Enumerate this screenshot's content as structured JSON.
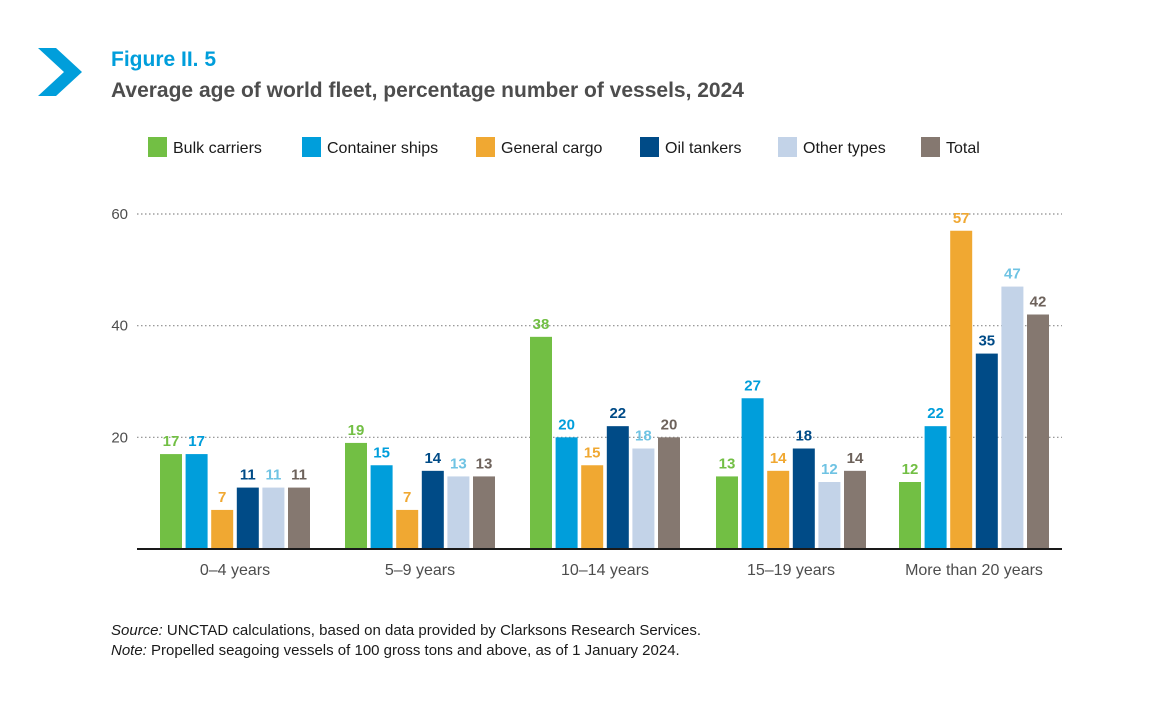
{
  "figure": {
    "label": "Figure II. 5",
    "title": "Average age of world fleet, percentage number of vessels, 2024",
    "icon": "chevron-right-icon",
    "accent_color": "#009edb"
  },
  "chart_data": {
    "type": "bar",
    "categories": [
      "0–4 years",
      "5–9 years",
      "10–14 years",
      "15–19 years",
      "More than 20 years"
    ],
    "series": [
      {
        "name": "Bulk carriers",
        "color": "#72bf44",
        "label_color": "#72bf44",
        "values": [
          17,
          19,
          38,
          13,
          12
        ]
      },
      {
        "name": "Container ships",
        "color": "#009edb",
        "label_color": "#009edb",
        "values": [
          17,
          15,
          20,
          27,
          22
        ]
      },
      {
        "name": "General cargo",
        "color": "#f0a832",
        "label_color": "#f0a832",
        "values": [
          7,
          7,
          15,
          14,
          57
        ]
      },
      {
        "name": "Oil tankers",
        "color": "#004b87",
        "label_color": "#004b87",
        "values": [
          11,
          14,
          22,
          18,
          35
        ]
      },
      {
        "name": "Other types",
        "color": "#c3d3e8",
        "label_color": "#6fc3e3",
        "values": [
          11,
          13,
          18,
          12,
          47
        ]
      },
      {
        "name": "Total",
        "color": "#857870",
        "label_color": "#6d625b",
        "values": [
          11,
          13,
          20,
          14,
          42
        ]
      }
    ],
    "yticks": [
      20,
      40,
      60
    ],
    "ylim": [
      0,
      60
    ],
    "grid": true,
    "legend": "top",
    "xlabel": "",
    "ylabel": ""
  },
  "footer": {
    "source_label": "Source:",
    "source_text": " UNCTAD calculations, based on data provided by Clarksons Research Services.",
    "note_label": "Note:",
    "note_text": " Propelled seagoing vessels of 100 gross tons and above, as of 1 January 2024."
  }
}
